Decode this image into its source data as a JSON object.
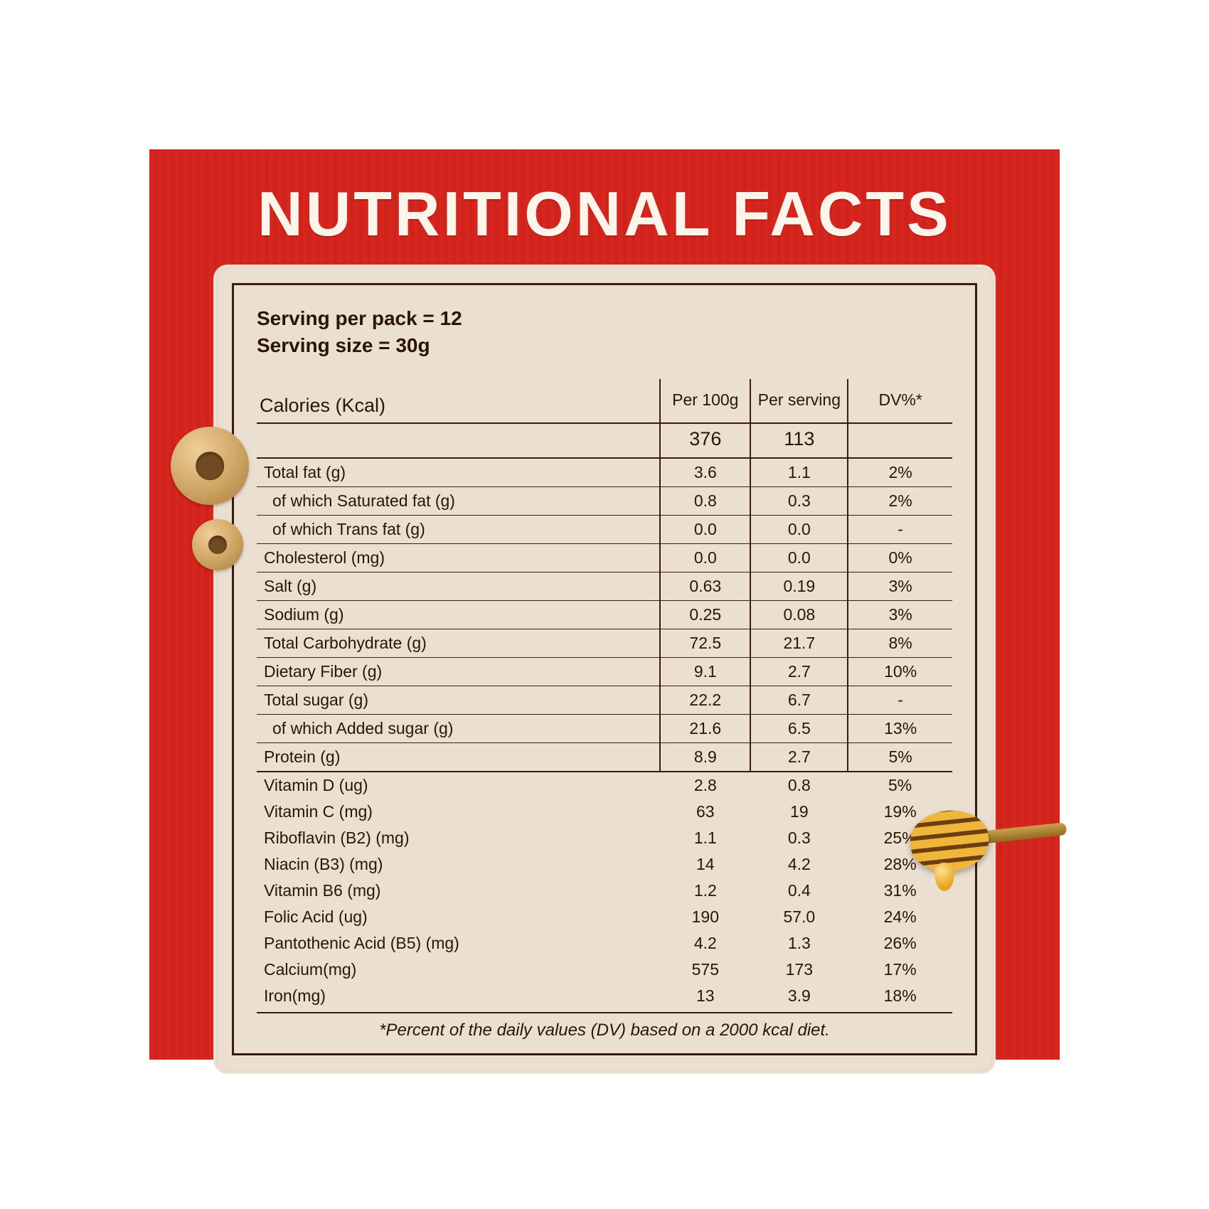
{
  "title": "NUTRITIONAL FACTS",
  "serving_per_pack": "Serving per pack = 12",
  "serving_size": "Serving size = 30g",
  "headers": {
    "name": "Calories (Kcal)",
    "per100g": "Per 100g",
    "perServing": "Per serving",
    "dv": "DV%*"
  },
  "calories": {
    "per100g": "376",
    "perServing": "113",
    "dv": ""
  },
  "rows": [
    {
      "n": "Total fat (g)",
      "a": "3.6",
      "b": "1.1",
      "c": "2%"
    },
    {
      "n": "of which Saturated fat (g)",
      "a": "0.8",
      "b": "0.3",
      "c": "2%",
      "indent": true
    },
    {
      "n": "of which Trans fat (g)",
      "a": "0.0",
      "b": "0.0",
      "c": "-",
      "indent": true
    },
    {
      "n": "Cholesterol (mg)",
      "a": "0.0",
      "b": "0.0",
      "c": "0%"
    },
    {
      "n": "Salt (g)",
      "a": "0.63",
      "b": "0.19",
      "c": "3%"
    },
    {
      "n": "Sodium (g)",
      "a": "0.25",
      "b": "0.08",
      "c": "3%"
    },
    {
      "n": "Total Carbohydrate (g)",
      "a": "72.5",
      "b": "21.7",
      "c": "8%"
    },
    {
      "n": "Dietary Fiber (g)",
      "a": "9.1",
      "b": "2.7",
      "c": "10%"
    },
    {
      "n": "Total sugar (g)",
      "a": "22.2",
      "b": "6.7",
      "c": "-"
    },
    {
      "n": "of which Added sugar (g)",
      "a": "21.6",
      "b": "6.5",
      "c": "13%",
      "indent": true
    },
    {
      "n": "Protein (g)",
      "a": "8.9",
      "b": "2.7",
      "c": "5%",
      "thick": true
    }
  ],
  "vitamins": [
    {
      "n": "Vitamin D (ug)",
      "a": "2.8",
      "b": "0.8",
      "c": "5%"
    },
    {
      "n": "Vitamin C (mg)",
      "a": "63",
      "b": "19",
      "c": "19%"
    },
    {
      "n": "Riboflavin (B2) (mg)",
      "a": "1.1",
      "b": "0.3",
      "c": "25%"
    },
    {
      "n": "Niacin (B3) (mg)",
      "a": "14",
      "b": "4.2",
      "c": "28%"
    },
    {
      "n": "Vitamin B6 (mg)",
      "a": "1.2",
      "b": "0.4",
      "c": "31%"
    },
    {
      "n": "Folic Acid (ug)",
      "a": "190",
      "b": "57.0",
      "c": "24%"
    },
    {
      "n": "Pantothenic Acid (B5) (mg)",
      "a": "4.2",
      "b": "1.3",
      "c": "26%"
    },
    {
      "n": "Calcium(mg)",
      "a": "575",
      "b": "173",
      "c": "17%"
    },
    {
      "n": "Iron(mg)",
      "a": "13",
      "b": "3.9",
      "c": "18%"
    }
  ],
  "footnote": "*Percent of the daily values (DV) based on a 2000 kcal diet.",
  "colors": {
    "bg_red": "#d7261d",
    "panel": "#eadfd1",
    "ink": "#2b1408"
  }
}
